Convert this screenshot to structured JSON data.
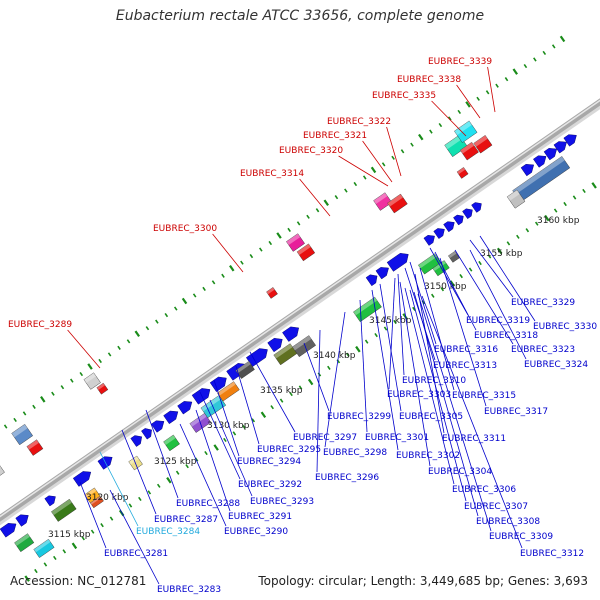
{
  "title": "Eubacterium rectale ATCC 33656, complete genome",
  "footer": {
    "accession": "Accession: NC_012781",
    "topology": "Topology: circular; Length: 3,449,685 bp; Genes: 3,693"
  },
  "colors": {
    "backbone": "#a8a8a8",
    "tick": "#1a8c1a",
    "gene_default": "#1010e8",
    "label_top": "#cc0000",
    "label_bottom": "#0000cc",
    "label_cyan": "#22aadd"
  },
  "scale_labels": [
    "3115 kbp",
    "3120 kbp",
    "3125 kbp",
    "3130 kbp",
    "3135 kbp",
    "3140 kbp",
    "3145 kbp",
    "3150 kbp",
    "3155 kbp",
    "3160 kbp"
  ],
  "top_labels": [
    "EUBREC_3339",
    "EUBREC_3338",
    "EUBREC_3335",
    "EUBREC_3322",
    "EUBREC_3321",
    "EUBREC_3320",
    "EUBREC_3314",
    "EUBREC_3300",
    "EUBREC_3289"
  ],
  "bottom_labels": [
    "EUBREC_3329",
    "EUBREC_3330",
    "EUBREC_3319",
    "EUBREC_3318",
    "EUBREC_3323",
    "EUBREC_3316",
    "EUBREC_3324",
    "EUBREC_3313",
    "EUBREC_3310",
    "EUBREC_3303",
    "EUBREC_3315",
    "EUBREC_3317",
    "EUBREC_3299",
    "EUBREC_3305",
    "EUBREC_3297",
    "EUBREC_3301",
    "EUBREC_3311",
    "EUBREC_3295",
    "EUBREC_3298",
    "EUBREC_3302",
    "EUBREC_3294",
    "EUBREC_3304",
    "EUBREC_3296",
    "EUBREC_3292",
    "EUBREC_3306",
    "EUBREC_3288",
    "EUBREC_3293",
    "EUBREC_3307",
    "EUBREC_3287",
    "EUBREC_3291",
    "EUBREC_3308",
    "EUBREC_3284",
    "EUBREC_3290",
    "EUBREC_3309",
    "EUBREC_3281",
    "EUBREC_3312",
    "EUBREC_3283"
  ]
}
